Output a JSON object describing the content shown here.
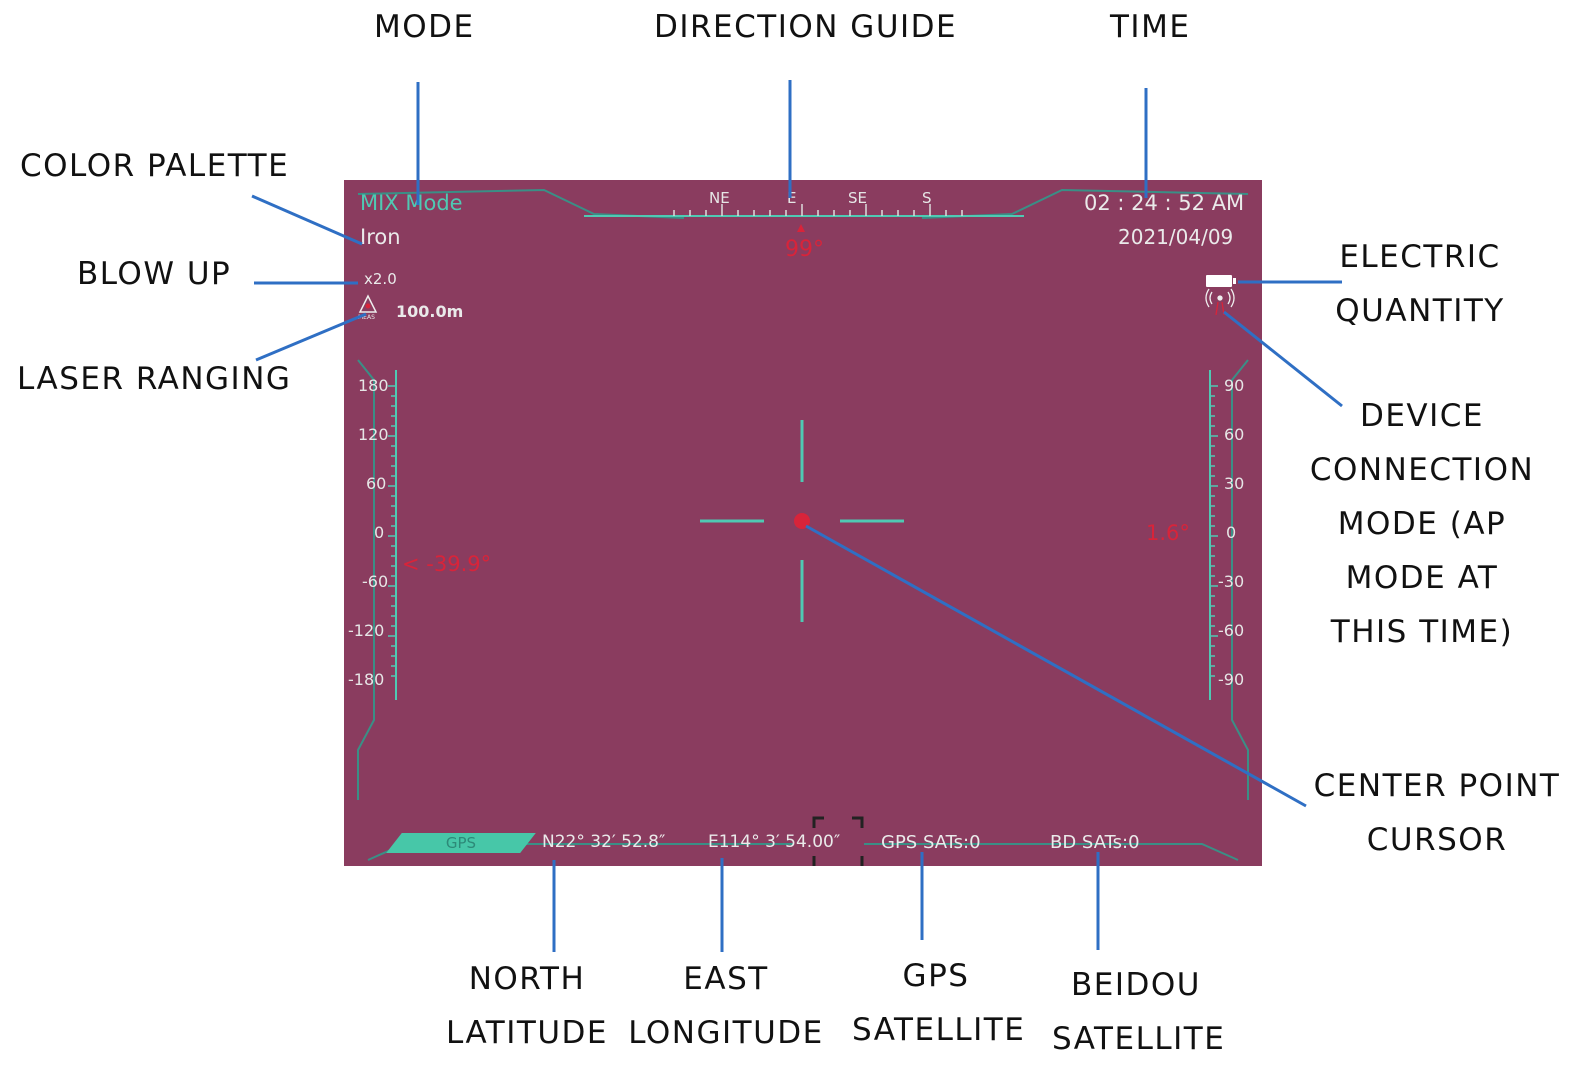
{
  "callouts": {
    "mode": "MODE",
    "direction_guide": "DIRECTION GUIDE",
    "time": "TIME",
    "color_palette": "COLOR PALETTE",
    "blow_up": "BLOW UP",
    "laser_ranging": "LASER RANGING",
    "electric_quantity": [
      "ELECTRIC",
      "QUANTITY"
    ],
    "device_connection_mode": [
      "DEVICE",
      "CONNECTION",
      "MODE (AP",
      "MODE AT",
      "THIS TIME)"
    ],
    "center_point_cursor": [
      "CENTER POINT",
      "CURSOR"
    ],
    "north_latitude": [
      "NORTH",
      "LATITUDE"
    ],
    "east_longitude": [
      "EAST",
      "LONGITUDE"
    ],
    "gps_satellite": [
      "GPS",
      "SATELLITE"
    ],
    "beidou_satellite": [
      "BEIDOU",
      "SATELLITE"
    ]
  },
  "hud": {
    "mode": "MIX Mode",
    "palette": "Iron",
    "zoom": "x2.0",
    "laser_badge": "MEAS",
    "laser_distance": "100.0m",
    "time": "02 : 24 : 52 AM",
    "date": "2021/04/09",
    "heading": "99°",
    "compass": [
      "NE",
      "E",
      "SE",
      "S"
    ],
    "left_scale": [
      "180",
      "120",
      "60",
      "0",
      "-60",
      "-120",
      "-180"
    ],
    "right_scale": [
      "90",
      "60",
      "30",
      "0",
      "-30",
      "-60",
      "-90"
    ],
    "left_angle": "< -39.9°",
    "right_angle": "1.6°",
    "gps_tag": "GPS",
    "latitude": "N22°  32′  52.8″",
    "longitude": "E114°  3′  54.00″",
    "gps_sats": "GPS SATs:0",
    "bd_sats": "BD SATs:0",
    "wifi_icon": "wifi-ap-icon",
    "battery_icon": "battery-icon"
  },
  "colors": {
    "screen_bg": "#8a3c5f",
    "hud_teal": "#4fc9b3",
    "hud_red": "#d8243a",
    "leader_blue": "#2f6fc4"
  }
}
